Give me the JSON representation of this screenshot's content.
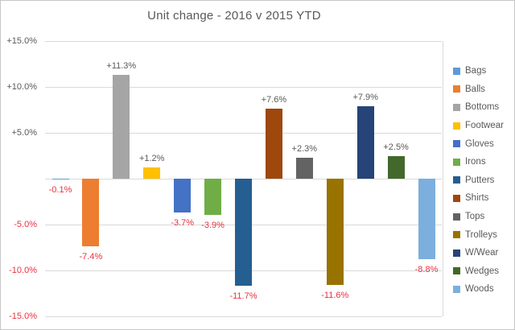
{
  "title": "Unit change - 2016 v 2015 YTD",
  "colors": {
    "background": "#ffffff",
    "frame_border": "#c6c6c6",
    "gridline": "#d9d9d9",
    "title_text": "#595959",
    "positive_label_text": "#595959",
    "negative_label_text": "#e8313f",
    "legend_text": "#595959"
  },
  "chart_data": {
    "type": "bar",
    "title": "Unit change - 2016 v 2015 YTD",
    "categories": [
      "Bags",
      "Balls",
      "Bottoms",
      "Footwear",
      "Gloves",
      "Irons",
      "Putters",
      "Shirts",
      "Tops",
      "Trolleys",
      "W/Wear",
      "Wedges",
      "Woods"
    ],
    "values": [
      -0.1,
      -7.4,
      11.3,
      1.2,
      -3.7,
      -3.9,
      -11.7,
      7.6,
      2.3,
      -11.6,
      7.9,
      2.5,
      -8.8
    ],
    "labels": [
      "-0.1%",
      "-7.4%",
      "+11.3%",
      "+1.2%",
      "-3.7%",
      "-3.9%",
      "-11.7%",
      "+7.6%",
      "+2.3%",
      "-11.6%",
      "+7.9%",
      "+2.5%",
      "-8.8%"
    ],
    "bar_colors": [
      "#5b9bd5",
      "#ed7d31",
      "#a5a5a5",
      "#ffc000",
      "#4472c4",
      "#70ad47",
      "#255e91",
      "#9e480e",
      "#636363",
      "#997300",
      "#264478",
      "#43682b",
      "#7cafdd"
    ],
    "xlabel": "",
    "ylabel": "",
    "ylim": [
      -15,
      15
    ],
    "gridline_values": [
      15,
      10,
      5,
      0,
      -5,
      -10,
      -15
    ],
    "yticks": [
      {
        "value": 15,
        "label": "+15.0%"
      },
      {
        "value": 10,
        "label": "+10.0%"
      },
      {
        "value": 5,
        "label": "+5.0%"
      },
      {
        "value": -5,
        "label": "-5.0%"
      },
      {
        "value": -10,
        "label": "-10.0%"
      },
      {
        "value": -15,
        "label": "-15.0%"
      }
    ],
    "grid": true,
    "legend_position": "right",
    "legend": [
      "Bags",
      "Balls",
      "Bottoms",
      "Footwear",
      "Gloves",
      "Irons",
      "Putters",
      "Shirts",
      "Tops",
      "Trolleys",
      "W/Wear",
      "Wedges",
      "Woods"
    ]
  }
}
